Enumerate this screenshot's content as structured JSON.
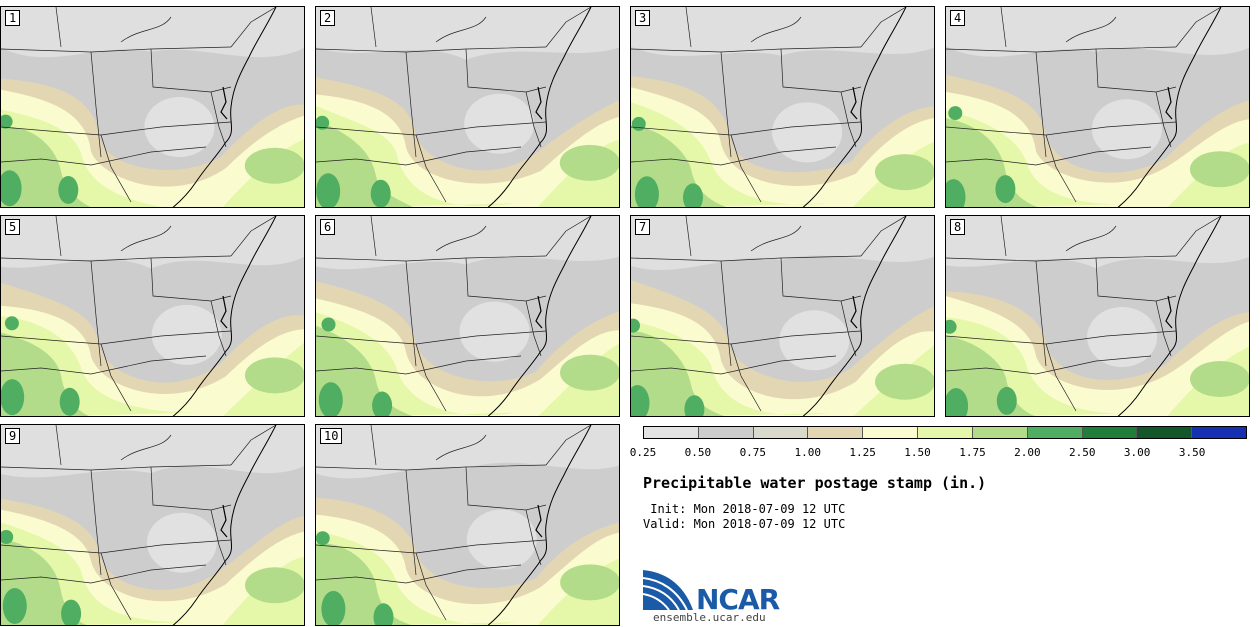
{
  "panels": [
    {
      "label": "1"
    },
    {
      "label": "2"
    },
    {
      "label": "3"
    },
    {
      "label": "4"
    },
    {
      "label": "5"
    },
    {
      "label": "6"
    },
    {
      "label": "7"
    },
    {
      "label": "8"
    },
    {
      "label": "9"
    },
    {
      "label": "10"
    }
  ],
  "colorbar": {
    "colors": [
      "#e3e3e3",
      "#cdcdcd",
      "#d9d9cc",
      "#e3d6b2",
      "#fbfbd0",
      "#e5f8a9",
      "#b3dc8a",
      "#4fae62",
      "#1f7e39",
      "#13562a",
      "#1530b0"
    ],
    "ticks": [
      "0.25",
      "0.50",
      "0.75",
      "1.00",
      "1.25",
      "1.50",
      "1.75",
      "2.00",
      "2.50",
      "3.00",
      "3.50"
    ]
  },
  "title": "Precipitable water postage stamp (in.)",
  "init": " Init: Mon 2018-07-09 12 UTC",
  "valid": "Valid: Mon 2018-07-09 12 UTC",
  "logo": {
    "text": "NCAR",
    "url": "ensemble.ucar.edu",
    "color": "#1a5aa6"
  }
}
